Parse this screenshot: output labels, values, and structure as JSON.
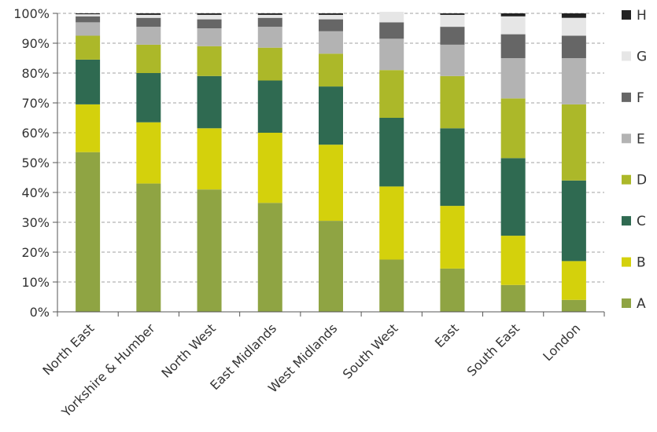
{
  "chart_data": {
    "type": "bar",
    "stacked": true,
    "title": "",
    "xlabel": "",
    "ylabel": "",
    "ylim": [
      0,
      100
    ],
    "y_ticks": [
      "0%",
      "10%",
      "20%",
      "30%",
      "40%",
      "50%",
      "60%",
      "70%",
      "80%",
      "90%",
      "100%"
    ],
    "grid": "horizontal dashed",
    "legend_position": "right",
    "categories": [
      "North East",
      "Yorkshire & Humber",
      "North West",
      "East Midlands",
      "West Midlands",
      "South West",
      "East",
      "South East",
      "London"
    ],
    "series": [
      {
        "name": "A",
        "color": "#8fa443",
        "values": [
          53.5,
          43,
          41,
          36.5,
          30.5,
          17.5,
          14.5,
          9,
          4
        ]
      },
      {
        "name": "B",
        "color": "#d4d10c",
        "values": [
          16,
          20.5,
          20.5,
          23.5,
          25.5,
          24.5,
          21,
          16.5,
          13
        ]
      },
      {
        "name": "C",
        "color": "#2f6a51",
        "values": [
          15,
          16.5,
          17.5,
          17.5,
          19.5,
          23,
          26,
          26,
          27
        ]
      },
      {
        "name": "D",
        "color": "#acb829",
        "values": [
          8,
          9.5,
          10,
          11,
          11,
          16,
          17.5,
          20,
          25.5
        ]
      },
      {
        "name": "E",
        "color": "#b3b3b3",
        "values": [
          4.5,
          6,
          6,
          7,
          7.5,
          10.5,
          10.5,
          13.5,
          15.5
        ]
      },
      {
        "name": "F",
        "color": "#666666",
        "values": [
          2,
          3,
          3,
          3,
          4,
          5.5,
          6,
          8,
          7.5
        ]
      },
      {
        "name": "G",
        "color": "#e6e6e6",
        "values": [
          0.7,
          1,
          1.5,
          1,
          1.5,
          3.5,
          4,
          6,
          6
        ]
      },
      {
        "name": "H",
        "color": "#222222",
        "values": [
          0.3,
          0.5,
          0.5,
          0.5,
          0.5,
          0,
          0.5,
          1,
          1.5
        ]
      }
    ]
  }
}
